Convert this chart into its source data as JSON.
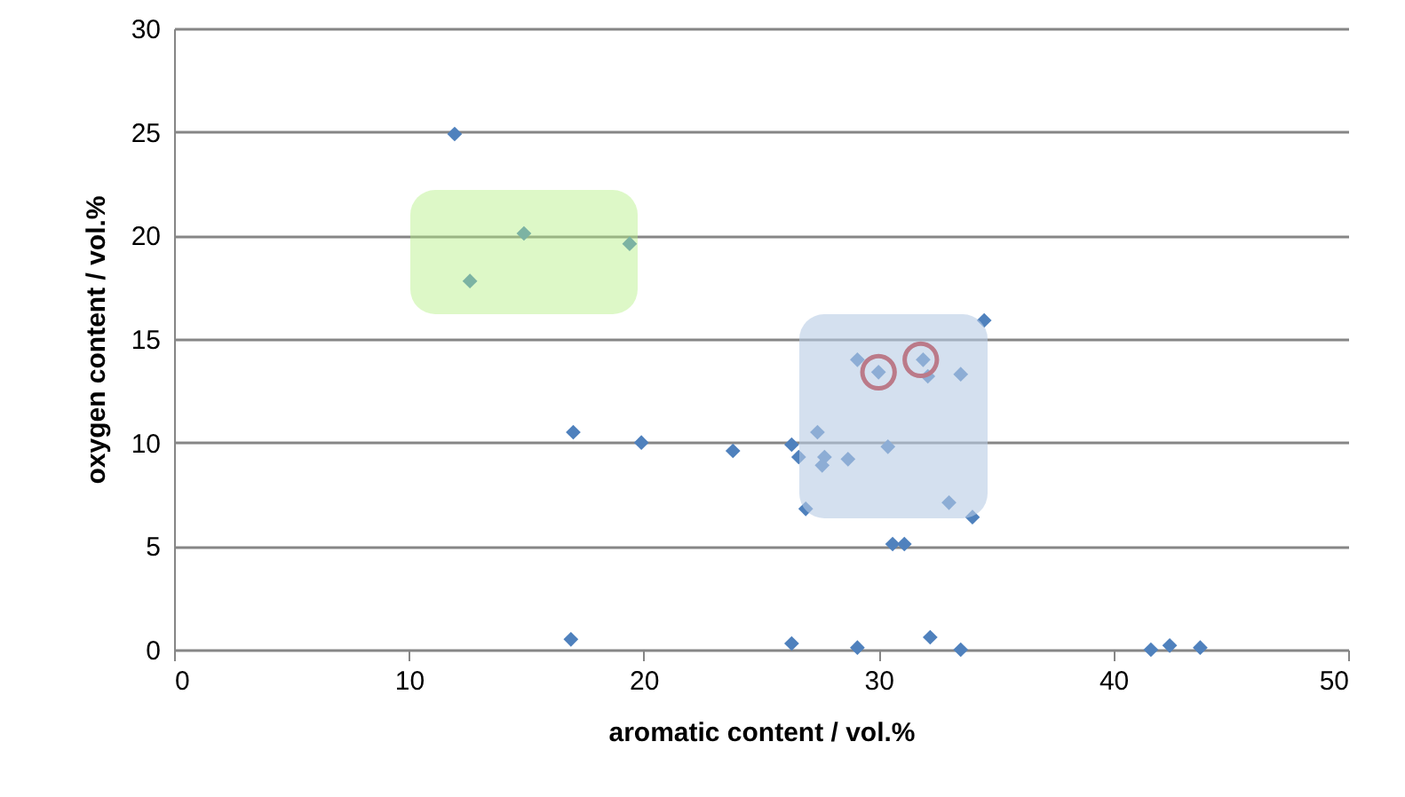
{
  "chart_data": {
    "type": "scatter",
    "xlabel": "aromatic content / vol.%",
    "ylabel": "oxygen content / vol.%",
    "xlim": [
      0,
      50
    ],
    "xticks": [
      0,
      10,
      20,
      30,
      40,
      50
    ],
    "ylim": [
      0,
      30
    ],
    "yticks": [
      0,
      5,
      10,
      15,
      20,
      25,
      30
    ],
    "grid": "y",
    "marker": "diamond",
    "series": [
      {
        "color": "#4f81bd",
        "x": [
          11.95,
          14.9,
          12.6,
          19.4,
          34.5,
          17.0,
          19.9,
          23.8,
          26.3,
          26.6,
          26.9,
          34.0,
          30.6,
          31.1,
          29.1,
          30.0,
          31.9,
          32.1,
          33.5,
          27.4,
          27.7,
          27.6,
          28.7,
          30.4,
          33.0,
          16.9,
          26.3,
          29.1,
          32.2,
          33.5,
          41.6,
          42.4,
          43.7
        ],
        "values": [
          24.9,
          20.1,
          17.8,
          19.6,
          15.9,
          10.5,
          10.0,
          9.6,
          9.9,
          9.3,
          6.8,
          6.4,
          5.1,
          5.1,
          14.0,
          13.4,
          14.0,
          13.2,
          13.3,
          10.5,
          9.3,
          8.9,
          9.2,
          9.8,
          7.1,
          0.5,
          0.3,
          0.1,
          0.6,
          0.0,
          0.0,
          0.2,
          0.1
        ]
      },
      {
        "color": "#c00000",
        "marker": "circle",
        "x": [
          30.0,
          31.8
        ],
        "values": [
          13.4,
          14.0
        ]
      }
    ]
  }
}
